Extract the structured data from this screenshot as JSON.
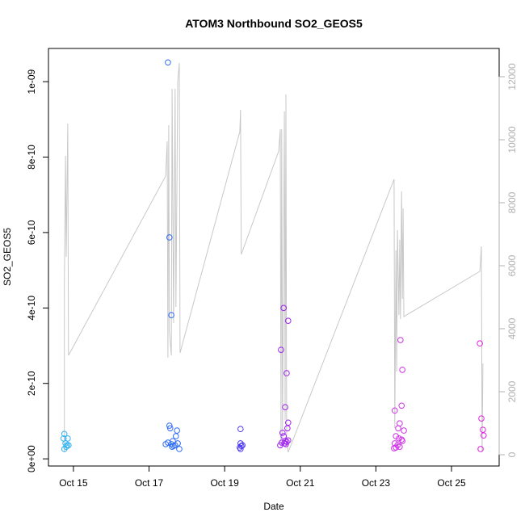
{
  "chart_data": {
    "type": "scatter",
    "title": "ATOM3 Northbound SO2_GEOS5",
    "x_label": "Date",
    "y_label": "SO2_GEOS5",
    "xlim": [
      14.34,
      26.26
    ],
    "xticks": [
      {
        "value": 15,
        "label": "Oct 15"
      },
      {
        "value": 17,
        "label": "Oct 17"
      },
      {
        "value": 19,
        "label": "Oct 19"
      },
      {
        "value": 21,
        "label": "Oct 21"
      },
      {
        "value": 23,
        "label": "Oct 23"
      },
      {
        "value": 25,
        "label": "Oct 25"
      }
    ],
    "ylim": [
      -1.9e-11,
      1.088e-09
    ],
    "yticks": [
      {
        "value": 0,
        "label": "0e+00"
      },
      {
        "value": 2e-10,
        "label": "2e-10"
      },
      {
        "value": 4e-10,
        "label": "4e-10"
      },
      {
        "value": 6e-10,
        "label": "6e-10"
      },
      {
        "value": 8e-10,
        "label": "8e-10"
      },
      {
        "value": 1e-09,
        "label": "1e-09"
      }
    ],
    "y2lim": [
      -359,
      12897
    ],
    "y2ticks": [
      0,
      2000,
      4000,
      6000,
      8000,
      10000,
      12000
    ],
    "series": [
      {
        "color": "#33b3f0",
        "x": [
          14.76,
          14.74,
          14.79,
          14.83,
          14.87,
          14.81,
          14.76,
          14.85
        ],
        "values": [
          6.6e-11,
          5.4e-11,
          4.1e-11,
          3.6e-11,
          3.6e-11,
          3.2e-11,
          2.6e-11,
          5.4e-11
        ]
      },
      {
        "color": "#2e6bf5",
        "x": [
          17.5,
          17.54,
          17.59,
          17.54,
          17.56,
          17.74,
          17.71,
          17.63,
          17.5,
          17.44,
          17.59,
          17.65,
          17.69,
          17.76,
          17.8,
          17.61
        ],
        "values": [
          1.051e-09,
          5.87e-10,
          3.81e-10,
          8.8e-11,
          8.1e-11,
          7.5e-11,
          6e-11,
          4.7e-11,
          4.3e-11,
          3.9e-11,
          3.9e-11,
          3.4e-11,
          3.6e-11,
          4.1e-11,
          2.6e-11,
          3.2e-11
        ]
      },
      {
        "color": "#4e3af0",
        "x": [
          19.42,
          19.42,
          19.44,
          19.4,
          19.47,
          19.42
        ],
        "values": [
          7.9e-11,
          4.1e-11,
          3.4e-11,
          3e-11,
          3.6e-11,
          2.6e-11
        ]
      },
      {
        "color": "#a020f0",
        "x": [
          20.56,
          20.49,
          20.68,
          20.64,
          20.6,
          20.68,
          20.66,
          20.53,
          20.56,
          20.6,
          20.47,
          20.51,
          20.58,
          20.64,
          20.68,
          20.62
        ],
        "values": [
          4e-10,
          2.89e-10,
          3.66e-10,
          2.27e-10,
          1.37e-10,
          9.6e-11,
          8.1e-11,
          6.9e-11,
          6e-11,
          4.7e-11,
          3.6e-11,
          4.3e-11,
          4.1e-11,
          4.5e-11,
          4.9e-11,
          3.9e-11
        ]
      },
      {
        "color": "#d030e8",
        "x": [
          23.65,
          23.7,
          23.68,
          23.5,
          23.63,
          23.59,
          23.74,
          23.53,
          23.61,
          23.68,
          23.5,
          23.57,
          23.53,
          23.63,
          23.7,
          23.48
        ],
        "values": [
          3.15e-10,
          2.36e-10,
          1.41e-10,
          1.28e-10,
          9.4e-11,
          8.1e-11,
          7.5e-11,
          6e-11,
          5.4e-11,
          5.1e-11,
          4.1e-11,
          3.6e-11,
          3e-11,
          3.2e-11,
          4.7e-11,
          2.8e-11
        ]
      },
      {
        "color": "#e020e0",
        "x": [
          25.75,
          25.79,
          25.83,
          25.85,
          25.77
        ],
        "values": [
          3.06e-10,
          1.07e-10,
          7.7e-11,
          6.2e-11,
          2.6e-11
        ]
      }
    ],
    "line": {
      "axis": "y2",
      "color": "#c8c8c8",
      "x": [
        14.76,
        14.76,
        14.79,
        14.81,
        14.85,
        14.87,
        17.44,
        17.48,
        17.5,
        17.52,
        17.54,
        17.59,
        17.61,
        17.65,
        17.69,
        17.71,
        17.76,
        17.8,
        17.82,
        19.4,
        19.42,
        19.44,
        20.43,
        20.47,
        20.49,
        20.51,
        20.53,
        20.58,
        20.6,
        20.62,
        20.64,
        20.68,
        23.48,
        23.5,
        23.53,
        23.55,
        23.57,
        23.61,
        23.63,
        23.65,
        23.68,
        23.7,
        23.72,
        23.74,
        25.75,
        25.79,
        25.81,
        25.83
      ],
      "values": [
        77,
        5385,
        9487,
        6282,
        10513,
        3154,
        8846,
        9949,
        3077,
        10462,
        3923,
        3154,
        11615,
        4179,
        11615,
        4692,
        11872,
        12436,
        3231,
        10256,
        10949,
        6359,
        9641,
        10333,
        205,
        10333,
        538,
        10897,
        1103,
        11436,
        462,
        77,
        8744,
        846,
        6487,
        2641,
        7128,
        4436,
        6821,
        4308,
        8359,
        4949,
        7821,
        4385,
        5821,
        6615,
        77,
        2897
      ]
    }
  }
}
